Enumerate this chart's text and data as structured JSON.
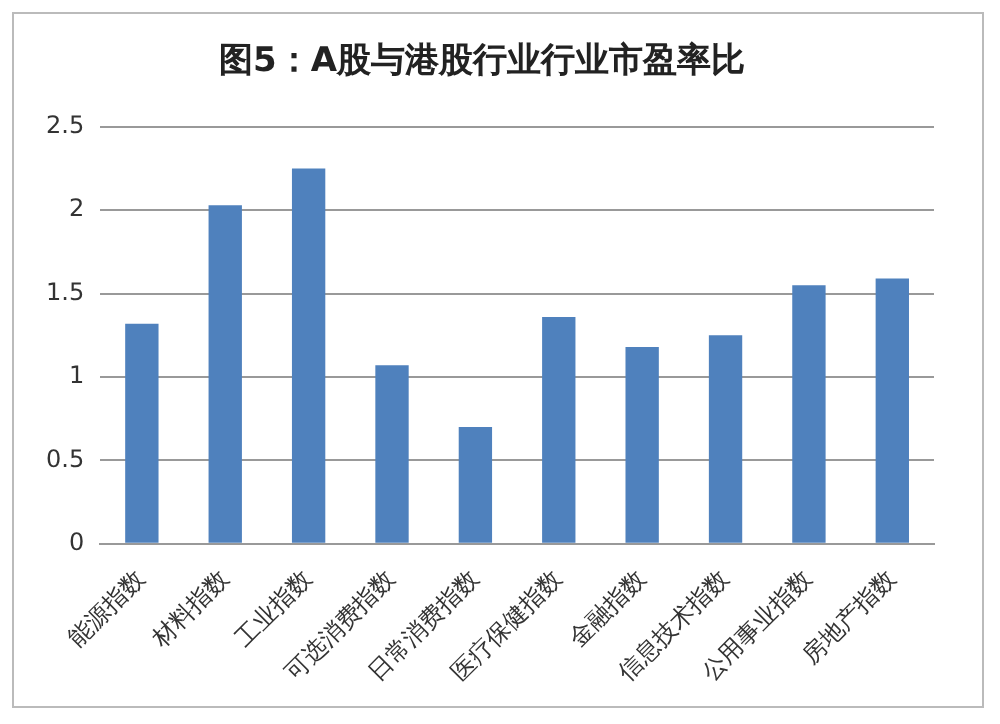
{
  "chart_data": {
    "type": "bar",
    "title": "图5：A股与港股行业行业市盈率比",
    "categories": [
      "能源指数",
      "材料指数",
      "工业指数",
      "可选消费指数",
      "日常消费指数",
      "医疗保健指数",
      "金融指数",
      "信息技术指数",
      "公用事业指数",
      "房地产指数"
    ],
    "values": [
      1.32,
      2.03,
      2.25,
      1.07,
      0.7,
      1.36,
      1.18,
      1.25,
      1.55,
      1.59
    ],
    "color": "#4f81bd",
    "ylim": [
      0,
      2.5
    ],
    "yticks": [
      0,
      0.5,
      1,
      1.5,
      2,
      2.5
    ],
    "grid": "y",
    "legend": false
  }
}
